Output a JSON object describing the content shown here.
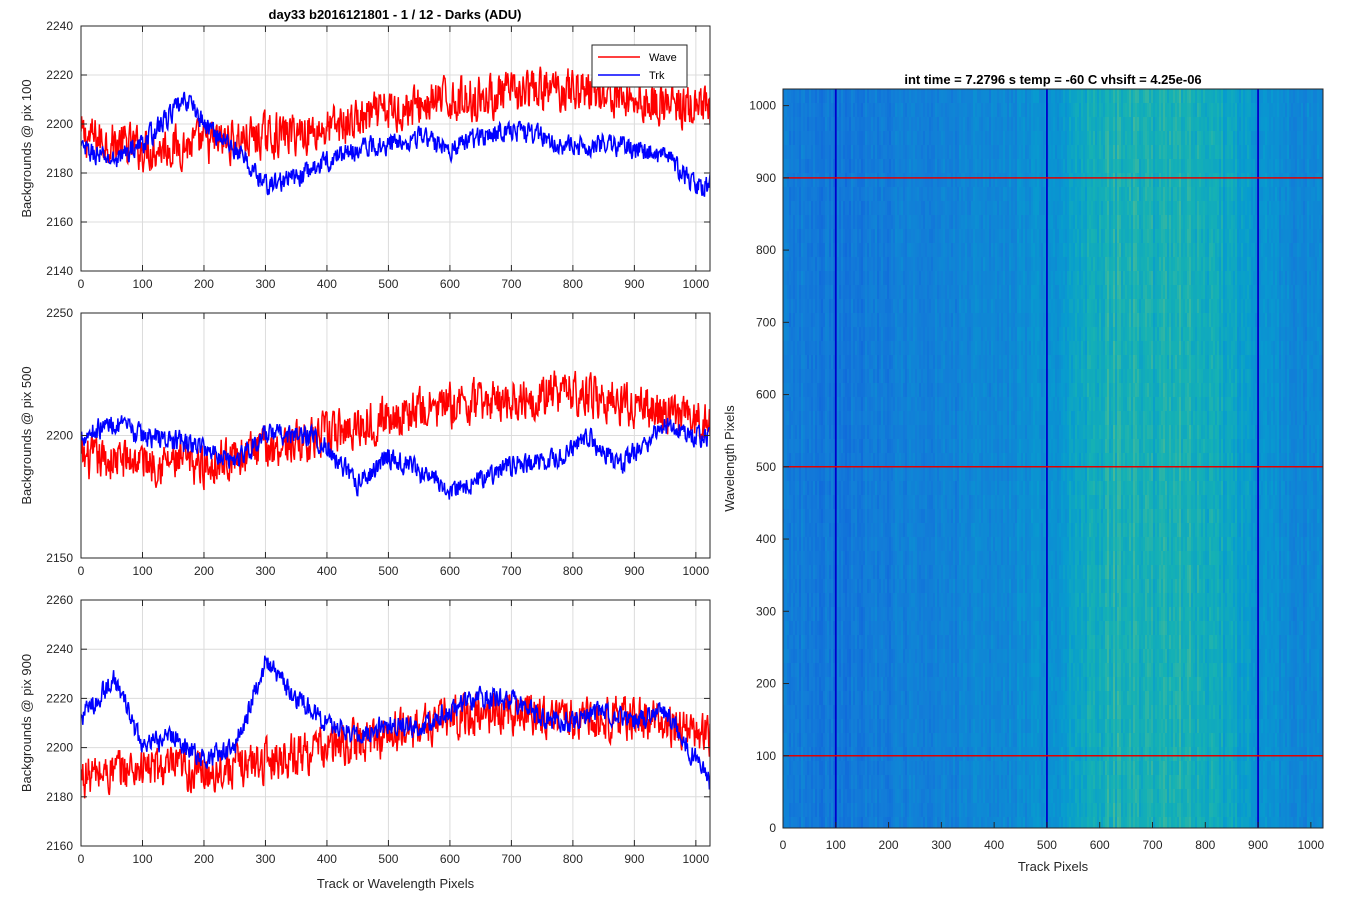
{
  "figure": {
    "suptitle": "day33 b2016121801 - 1 / 12 - Darks (ADU)",
    "legend": [
      "Wave",
      "Trk"
    ]
  },
  "colors": {
    "wave": "#ff0000",
    "trk": "#0000ff",
    "grid": "#dcdcdc",
    "axis": "#262626"
  },
  "chart_data": [
    {
      "type": "line",
      "ylabel": "Backgrounds @ pix 100",
      "xlabel": "",
      "xlim": [
        0,
        1023
      ],
      "ylim": [
        2140,
        2240
      ],
      "xticks": [
        0,
        100,
        200,
        300,
        400,
        500,
        600,
        700,
        800,
        900,
        1000
      ],
      "yticks": [
        2140,
        2160,
        2180,
        2200,
        2220,
        2240
      ],
      "grid": true,
      "legend": "top-right",
      "series": [
        {
          "name": "Wave",
          "color": "#ff0000",
          "x": [
            0,
            100,
            200,
            300,
            400,
            500,
            600,
            700,
            800,
            900,
            1023
          ],
          "values": [
            2195,
            2190,
            2192,
            2195,
            2198,
            2205,
            2210,
            2212,
            2215,
            2210,
            2205
          ]
        },
        {
          "name": "Trk",
          "color": "#0000ff",
          "x": [
            0,
            50,
            100,
            150,
            175,
            200,
            250,
            300,
            350,
            400,
            450,
            500,
            550,
            600,
            650,
            700,
            750,
            800,
            850,
            900,
            950,
            1000,
            1023
          ],
          "values": [
            2190,
            2185,
            2192,
            2205,
            2210,
            2200,
            2190,
            2175,
            2178,
            2185,
            2190,
            2192,
            2195,
            2190,
            2195,
            2198,
            2195,
            2190,
            2192,
            2190,
            2187,
            2175,
            2175
          ]
        }
      ]
    },
    {
      "type": "line",
      "ylabel": "Backgrounds @ pix 500",
      "xlabel": "",
      "xlim": [
        0,
        1023
      ],
      "ylim": [
        2150,
        2250
      ],
      "xticks": [
        0,
        100,
        200,
        300,
        400,
        500,
        600,
        700,
        800,
        900,
        1000
      ],
      "yticks": [
        2150,
        2200,
        2250
      ],
      "grid": true,
      "series": [
        {
          "name": "Wave",
          "color": "#ff0000",
          "x": [
            0,
            100,
            200,
            300,
            400,
            500,
            600,
            700,
            800,
            900,
            1023
          ],
          "values": [
            2190,
            2190,
            2188,
            2195,
            2200,
            2208,
            2212,
            2215,
            2218,
            2212,
            2205
          ]
        },
        {
          "name": "Trk",
          "color": "#0000ff",
          "x": [
            0,
            50,
            100,
            150,
            200,
            250,
            300,
            380,
            450,
            500,
            600,
            650,
            700,
            780,
            820,
            880,
            950,
            1023
          ],
          "values": [
            2200,
            2205,
            2200,
            2198,
            2195,
            2190,
            2200,
            2200,
            2180,
            2192,
            2178,
            2182,
            2188,
            2190,
            2200,
            2188,
            2205,
            2198
          ]
        }
      ]
    },
    {
      "type": "line",
      "ylabel": "Backgrounds @ pix 900",
      "xlabel": "Track or Wavelength Pixels",
      "xlim": [
        0,
        1023
      ],
      "ylim": [
        2160,
        2260
      ],
      "xticks": [
        0,
        100,
        200,
        300,
        400,
        500,
        600,
        700,
        800,
        900,
        1000
      ],
      "yticks": [
        2160,
        2180,
        2200,
        2220,
        2240,
        2260
      ],
      "grid": true,
      "series": [
        {
          "name": "Wave",
          "color": "#ff0000",
          "x": [
            0,
            100,
            200,
            300,
            400,
            500,
            600,
            700,
            800,
            900,
            1023
          ],
          "values": [
            2188,
            2192,
            2190,
            2195,
            2200,
            2205,
            2212,
            2215,
            2212,
            2212,
            2205
          ]
        },
        {
          "name": "Trk",
          "color": "#0000ff",
          "x": [
            0,
            55,
            100,
            150,
            200,
            250,
            300,
            350,
            400,
            450,
            500,
            550,
            600,
            650,
            700,
            750,
            800,
            850,
            900,
            950,
            1000,
            1023
          ],
          "values": [
            2212,
            2228,
            2200,
            2205,
            2195,
            2200,
            2235,
            2220,
            2210,
            2205,
            2210,
            2208,
            2215,
            2220,
            2220,
            2212,
            2210,
            2215,
            2210,
            2215,
            2195,
            2185
          ]
        }
      ]
    },
    {
      "type": "heatmap",
      "title": "int time = 7.2796 s    temp = -60 C    vhsift = 4.25e-06",
      "xlabel": "Track Pixels",
      "ylabel": "Wavelength Pixels",
      "xlim": [
        0,
        1023
      ],
      "ylim": [
        0,
        1023
      ],
      "xticks": [
        0,
        100,
        200,
        300,
        400,
        500,
        600,
        700,
        800,
        900,
        1000
      ],
      "yticks": [
        0,
        100,
        200,
        300,
        400,
        500,
        600,
        700,
        800,
        900,
        1000
      ],
      "grid": false,
      "colormap": "parula",
      "column_brightness": {
        "x": [
          0,
          100,
          200,
          300,
          400,
          500,
          550,
          600,
          650,
          700,
          750,
          800,
          850,
          900,
          950,
          1023
        ],
        "level": [
          0.3,
          0.28,
          0.3,
          0.32,
          0.35,
          0.4,
          0.47,
          0.54,
          0.56,
          0.53,
          0.55,
          0.53,
          0.48,
          0.42,
          0.36,
          0.34
        ]
      },
      "vertical_lines": {
        "x": [
          100,
          500,
          900
        ],
        "color": "#0000cc"
      },
      "horizontal_lines": {
        "y": [
          100,
          500,
          900
        ],
        "color": "#e00000"
      }
    }
  ]
}
